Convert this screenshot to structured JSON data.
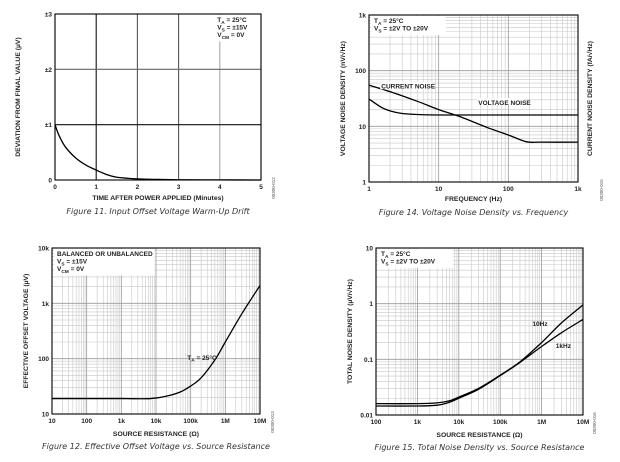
{
  "chart_data": [
    {
      "id": "fig11",
      "type": "line",
      "title": "Figure 11. Input Offset Voltage Warm-Up Drift",
      "xlabel": "TIME AFTER POWER APPLIED (Minutes)",
      "ylabel": "DEVIATION FROM FINAL VALUE (µV)",
      "xscale": "linear",
      "yscale": "linear",
      "xlim": [
        0,
        5
      ],
      "ylim": [
        0,
        3
      ],
      "xticks": [
        0,
        1,
        2,
        3,
        4,
        5
      ],
      "xtick_labels": [
        "0",
        "1",
        "2",
        "3",
        "4",
        "5"
      ],
      "yticks": [
        0,
        1,
        2,
        3
      ],
      "ytick_labels": [
        "0",
        "±1",
        "±2",
        "±3"
      ],
      "grid": "major",
      "annotations": [
        "TA = 25°C",
        "VS = ±15V",
        "VCM = 0V"
      ],
      "figure_code": "00300-012",
      "series": [
        {
          "name": "drift",
          "x": [
            0,
            0.1,
            0.25,
            0.5,
            0.75,
            1.0,
            1.25,
            1.5,
            2.0,
            2.5,
            3,
            4,
            5
          ],
          "y": [
            1.0,
            0.8,
            0.6,
            0.4,
            0.27,
            0.18,
            0.1,
            0.05,
            0.02,
            0.01,
            0.005,
            0.002,
            0.0
          ]
        }
      ]
    },
    {
      "id": "fig14",
      "type": "line",
      "title": "Figure 14. Voltage Noise Density vs. Frequency",
      "xlabel": "FREQUENCY (Hz)",
      "ylabel": "VOLTAGE NOISE DENSITY (nV/√Hz)",
      "ylabel_right": "CURRENT NOISE DENSITY (fA/√Hz)",
      "xscale": "log",
      "yscale": "log",
      "xlim": [
        1,
        1000
      ],
      "ylim": [
        1,
        1000
      ],
      "xticks": [
        1,
        10,
        100,
        1000
      ],
      "xtick_labels": [
        "1",
        "10",
        "100",
        "1k"
      ],
      "yticks": [
        1,
        10,
        100,
        1000
      ],
      "ytick_labels": [
        "1",
        "10",
        "100",
        "1k"
      ],
      "grid": "major+minor",
      "annotations": [
        "TA = 25°C",
        "VS = ±2V TO ±20V"
      ],
      "figure_code": "00300-015",
      "series": [
        {
          "name": "CURRENT NOISE",
          "x": [
            1,
            2,
            5,
            10,
            20,
            50,
            100,
            180,
            300,
            1000
          ],
          "y": [
            55,
            42,
            28,
            20,
            15,
            9.5,
            7,
            5.3,
            5.2,
            5.2
          ]
        },
        {
          "name": "VOLTAGE NOISE",
          "x": [
            1,
            1.5,
            2,
            3,
            5,
            10,
            100,
            1000
          ],
          "y": [
            31,
            22,
            19,
            17,
            16.3,
            16,
            16,
            16
          ]
        }
      ]
    },
    {
      "id": "fig12",
      "type": "line",
      "title": "Figure 12. Effective Offset Voltage vs. Source Resistance",
      "xlabel": "SOURCE RESISTANCE (Ω)",
      "ylabel": "EFFECTIVE OFFSET VOLTAGE (µV)",
      "xscale": "log",
      "yscale": "log",
      "xlim": [
        10,
        10000000
      ],
      "ylim": [
        10,
        10000
      ],
      "xticks": [
        10,
        100,
        1000,
        10000,
        100000,
        1000000,
        10000000
      ],
      "xtick_labels": [
        "10",
        "100",
        "1k",
        "10k",
        "100k",
        "1M",
        "10M"
      ],
      "yticks": [
        10,
        100,
        1000,
        10000
      ],
      "ytick_labels": [
        "10",
        "100",
        "1k",
        "10k"
      ],
      "grid": "major+minor",
      "annotations": [
        "BALANCED OR UNBALANCED",
        "VS = ±15V",
        "VCM = 0V",
        "TA = 25°C"
      ],
      "figure_code": "00300-013",
      "series": [
        {
          "name": "TA = 25°C",
          "x": [
            10,
            100,
            1000,
            7000,
            20000,
            50000,
            100000,
            200000,
            500000,
            1000000,
            3000000,
            10000000
          ],
          "y": [
            19,
            19,
            19,
            19,
            21,
            25,
            32,
            45,
            95,
            200,
            650,
            2100
          ]
        }
      ]
    },
    {
      "id": "fig15",
      "type": "line",
      "title": "Figure 15. Total Noise Density vs. Source Resistance",
      "xlabel": "SOURCE RESISTANCE (Ω)",
      "ylabel": "TOTAL NOISE DENSITY (µV/√Hz)",
      "xscale": "log",
      "yscale": "log",
      "xlim": [
        100,
        10000000
      ],
      "ylim": [
        0.01,
        10
      ],
      "xticks": [
        100,
        1000,
        10000,
        100000,
        1000000,
        10000000
      ],
      "xtick_labels": [
        "100",
        "1k",
        "10k",
        "100k",
        "1M",
        "10M"
      ],
      "yticks": [
        0.01,
        0.1,
        1,
        10
      ],
      "ytick_labels": [
        "0.01",
        "0.1",
        "1",
        "10"
      ],
      "grid": "major+minor",
      "annotations": [
        "TA = 25°C",
        "VS = ±2V TO ±20V"
      ],
      "figure_code": "00300-016",
      "series": [
        {
          "name": "10Hz",
          "x": [
            100,
            1000,
            3000,
            6000,
            10000,
            30000,
            100000,
            300000,
            1000000,
            3000000,
            10000000
          ],
          "y": [
            0.016,
            0.016,
            0.0165,
            0.018,
            0.021,
            0.03,
            0.052,
            0.09,
            0.2,
            0.45,
            0.95
          ]
        },
        {
          "name": "1kHz",
          "x": [
            100,
            1000,
            3000,
            6000,
            10000,
            30000,
            100000,
            300000,
            1000000,
            3000000,
            10000000
          ],
          "y": [
            0.0145,
            0.0145,
            0.015,
            0.017,
            0.02,
            0.029,
            0.051,
            0.088,
            0.17,
            0.3,
            0.52
          ]
        }
      ]
    }
  ]
}
